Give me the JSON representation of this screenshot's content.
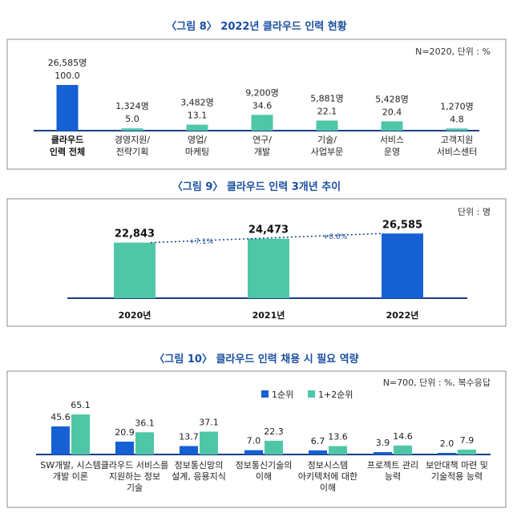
{
  "colors": {
    "title": "#1a4fa0",
    "primary": "#1560d2",
    "secondary": "#4fc7a6",
    "axis": "#1a3f86",
    "panel_border": "#8c8c8c",
    "growth_text": "#1a4fa0"
  },
  "chart_data": [
    {
      "type": "bar",
      "title": "〈그림 8〉 2022년 클라우드 인력 현황",
      "note": "N=2020,  단위 : %",
      "categories": [
        "클라우드\n인력 전체",
        "경영지원/\n전략기획",
        "영업/\n마케팅",
        "연구/\n개발",
        "기술/\n사업부문",
        "서비스\n운영",
        "고객지원\n서비스센터"
      ],
      "counts": [
        "26,585명",
        "1,324명",
        "3,482명",
        "9,200명",
        "5,881명",
        "5,428명",
        "1,270명"
      ],
      "values": [
        100.0,
        5.0,
        13.1,
        34.6,
        22.1,
        20.4,
        4.8
      ],
      "value_labels": [
        "100.0",
        "5.0",
        "13.1",
        "34.6",
        "22.1",
        "20.4",
        "4.8"
      ],
      "ylim": [
        0,
        100
      ]
    },
    {
      "type": "bar",
      "title": "〈그림 9〉 클라우드 인력 3개년 추이",
      "note": "단위 : 명",
      "categories": [
        "2020년",
        "2021년",
        "2022년"
      ],
      "values": [
        22843,
        24473,
        26585
      ],
      "value_labels": [
        "22,843",
        "24,473",
        "26,585"
      ],
      "growth_labels": [
        "+7.1%",
        "+8.6%"
      ],
      "ylim": [
        0,
        28000
      ]
    },
    {
      "type": "bar",
      "title": "〈그림 10〉 클라우드 인력 채용 시 필요 역량",
      "note": "N=700,  단위 : %, 복수응답",
      "categories": [
        "SW개발, 시스템\n개발 이론",
        "클라우드 서비스를\n지원하는 정보\n기술",
        "정보통신망의\n설계, 응용지식",
        "정보통신기술의\n이해",
        "정보시스템\n아키텍처에 대한\n이해",
        "프로젝트 관리\n능력",
        "보안대책 마련 및\n기술적용 능력"
      ],
      "series": [
        {
          "name": "1순위",
          "values": [
            45.6,
            20.9,
            13.7,
            7.0,
            6.7,
            3.9,
            2.0
          ],
          "labels": [
            "45.6",
            "20.9",
            "13.7",
            "7.0",
            "6.7",
            "3.9",
            "2.0"
          ]
        },
        {
          "name": "1+2순위",
          "values": [
            65.1,
            36.1,
            37.1,
            22.3,
            13.6,
            14.6,
            7.9
          ],
          "labels": [
            "65.1",
            "36.1",
            "37.1",
            "22.3",
            "13.6",
            "14.6",
            "7.9"
          ]
        }
      ],
      "ylim": [
        0,
        70
      ]
    }
  ]
}
